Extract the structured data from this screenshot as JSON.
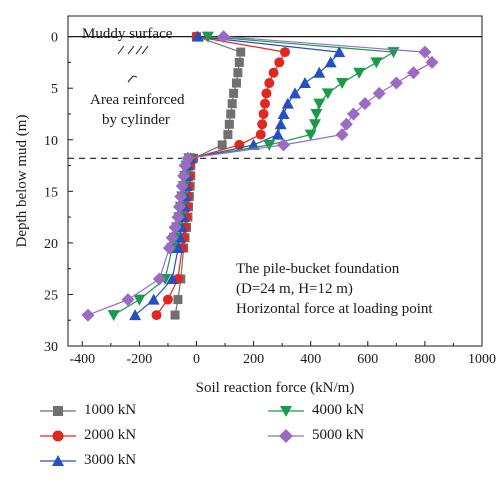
{
  "chart_data": {
    "type": "line",
    "xlabel": "Soil reaction force (kN/m)",
    "ylabel": "Depth below mud (m)",
    "xlim": [
      -450,
      1000
    ],
    "ylim": [
      30,
      -2
    ],
    "y_inverted": true,
    "xticks": [
      -400,
      -200,
      0,
      200,
      400,
      600,
      800,
      1000
    ],
    "yticks": [
      0,
      5,
      10,
      15,
      20,
      25,
      30
    ],
    "reference_lines": [
      {
        "orientation": "horizontal",
        "y": 0,
        "style": "solid"
      },
      {
        "orientation": "horizontal",
        "y": 11.8,
        "style": "dashed"
      }
    ],
    "annotations": [
      "Muddy surface",
      "Area reinforced",
      "by cylinder",
      "The pile-bucket foundation",
      "(D=24 m, H=12 m)",
      "Horizontal force at loading point"
    ],
    "legend_position": "bottom",
    "series": [
      {
        "name": "1000 kN",
        "color": "#707070",
        "marker": "square",
        "x": [
          0,
          155,
          150,
          145,
          140,
          130,
          125,
          120,
          115,
          110,
          90,
          -10,
          -20,
          -20,
          -22,
          -25,
          -28,
          -30,
          -35,
          -40,
          -45,
          -55,
          -65,
          -75
        ],
        "y": [
          0,
          1.5,
          2.5,
          3.5,
          4.5,
          5.5,
          6.5,
          7.5,
          8.5,
          9.5,
          10.5,
          11.8,
          12.5,
          13.5,
          14.5,
          15.5,
          16.5,
          17.5,
          18.5,
          19.5,
          20.5,
          23.5,
          25.5,
          27.0
        ]
      },
      {
        "name": "2000 kN",
        "color": "#e0281e",
        "marker": "circle",
        "x": [
          0,
          310,
          290,
          270,
          255,
          245,
          240,
          235,
          230,
          225,
          150,
          -15,
          -25,
          -25,
          -28,
          -30,
          -33,
          -36,
          -40,
          -45,
          -50,
          -65,
          -100,
          -140
        ],
        "y": [
          0,
          1.5,
          2.5,
          3.5,
          4.5,
          5.5,
          6.5,
          7.5,
          8.5,
          9.5,
          10.5,
          11.8,
          12.5,
          13.5,
          14.5,
          15.5,
          16.5,
          17.5,
          18.5,
          19.5,
          20.5,
          23.5,
          25.5,
          27.0
        ]
      },
      {
        "name": "3000 kN",
        "color": "#2450c0",
        "marker": "triangle-up",
        "x": [
          5,
          500,
          470,
          430,
          380,
          345,
          320,
          305,
          295,
          285,
          200,
          -20,
          -30,
          -33,
          -35,
          -38,
          -42,
          -46,
          -52,
          -58,
          -64,
          -85,
          -150,
          -215
        ],
        "y": [
          0,
          1.5,
          2.5,
          3.5,
          4.5,
          5.5,
          6.5,
          7.5,
          8.5,
          9.5,
          10.5,
          11.8,
          12.5,
          13.5,
          14.5,
          15.5,
          16.5,
          17.5,
          18.5,
          19.5,
          20.5,
          23.5,
          25.5,
          27.0
        ]
      },
      {
        "name": "4000 kN",
        "color": "#1a9a4a",
        "marker": "triangle-down",
        "x": [
          40,
          690,
          630,
          570,
          510,
          460,
          430,
          420,
          415,
          400,
          255,
          -25,
          -35,
          -40,
          -45,
          -50,
          -55,
          -60,
          -68,
          -76,
          -85,
          -110,
          -200,
          -290
        ],
        "y": [
          0,
          1.5,
          2.5,
          3.5,
          4.5,
          5.5,
          6.5,
          7.5,
          8.5,
          9.5,
          10.5,
          11.8,
          12.5,
          13.5,
          14.5,
          15.5,
          16.5,
          17.5,
          18.5,
          19.5,
          20.5,
          23.5,
          25.5,
          27.0
        ]
      },
      {
        "name": "5000 kN",
        "color": "#9b6bc4",
        "marker": "diamond",
        "x": [
          95,
          800,
          825,
          760,
          700,
          640,
          590,
          550,
          525,
          510,
          305,
          -30,
          -40,
          -45,
          -50,
          -55,
          -60,
          -65,
          -75,
          -85,
          -95,
          -130,
          -240,
          -380
        ],
        "y": [
          0,
          1.5,
          2.5,
          3.5,
          4.5,
          5.5,
          6.5,
          7.5,
          8.5,
          9.5,
          10.5,
          11.8,
          12.5,
          13.5,
          14.5,
          15.5,
          16.5,
          17.5,
          18.5,
          19.5,
          20.5,
          23.5,
          25.5,
          27.0
        ]
      }
    ]
  }
}
